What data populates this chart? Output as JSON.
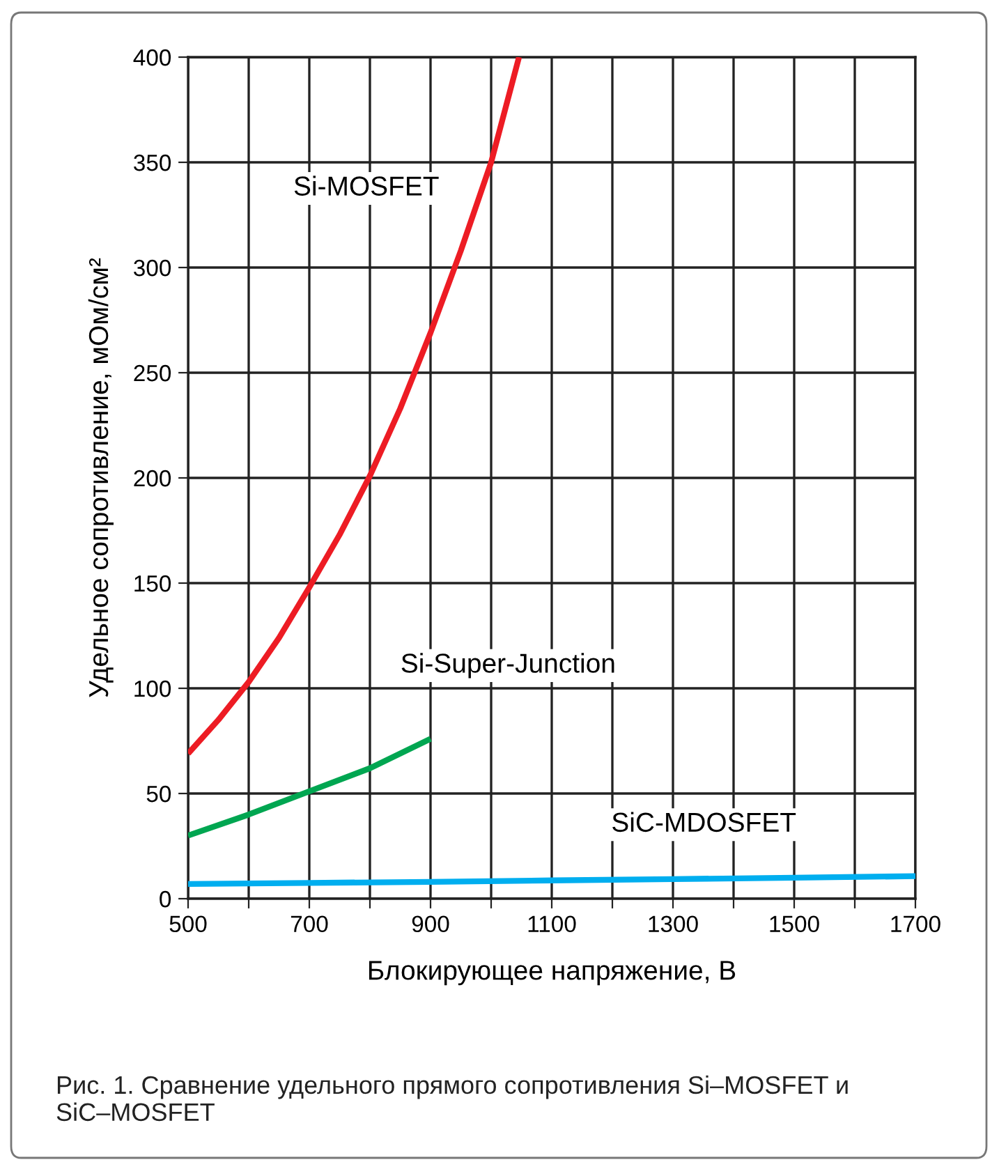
{
  "chart_data": {
    "type": "line",
    "xlabel": "Блокирующее напряжение, В",
    "ylabel": "Удельное сопротивление, мОм/см²",
    "xlim": [
      500,
      1700
    ],
    "xticks": [
      500,
      {
        "value": 600,
        "label": null
      },
      700,
      {
        "value": 800,
        "label": null
      },
      900,
      {
        "value": 1000,
        "label": null
      },
      1100,
      {
        "value": 1200,
        "label": null
      },
      1300,
      {
        "value": 1400,
        "label": null
      },
      1500,
      {
        "value": 1600,
        "label": null
      },
      1700
    ],
    "ylim": [
      0,
      400
    ],
    "yticks": [
      0,
      50,
      100,
      150,
      200,
      250,
      300,
      350,
      400
    ],
    "grid": true,
    "legend": false,
    "marker": "none",
    "line_style": "solid",
    "series": [
      {
        "name": "Si-MOSFET",
        "color": "#ed1c24",
        "x": [
          500,
          550,
          600,
          650,
          700,
          750,
          800,
          850,
          900,
          950,
          1000,
          1046
        ],
        "values": [
          69,
          85,
          103,
          124,
          148,
          173,
          201,
          233,
          269,
          308,
          350,
          400
        ]
      },
      {
        "name": "Si-Super-Junction",
        "color": "#00a651",
        "x": [
          500,
          600,
          700,
          800,
          900
        ],
        "values": [
          30,
          40,
          51,
          62,
          76
        ]
      },
      {
        "name": "SiC-MDOSFET",
        "color": "#00aeef",
        "x": [
          500,
          700,
          900,
          1100,
          1300,
          1500,
          1700
        ],
        "values": [
          7,
          7.5,
          8,
          8.7,
          9.3,
          10,
          10.7
        ]
      }
    ],
    "annotations": [
      "Рис. 1. Сравнение удельного прямого сопротивления Si–MOSFET и SiC–MOSFET"
    ]
  }
}
